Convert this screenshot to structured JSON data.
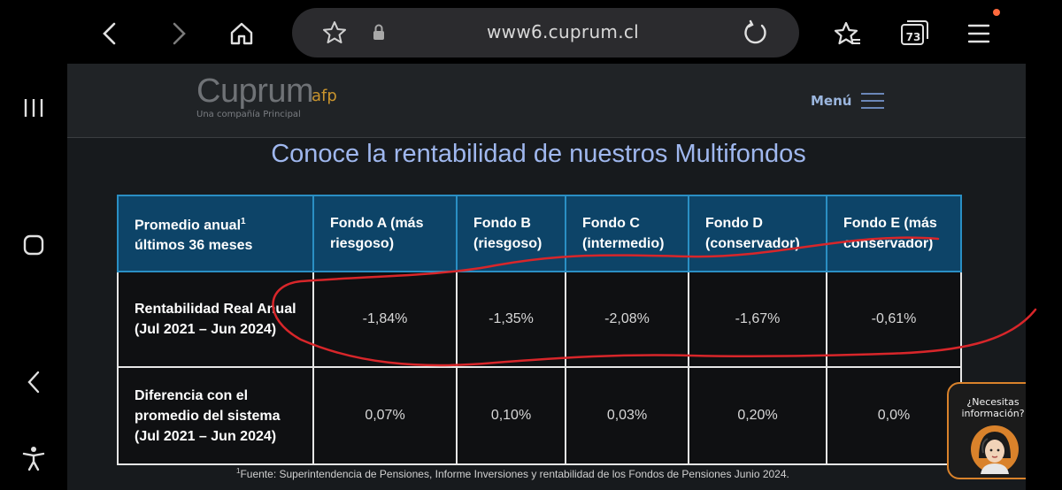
{
  "browser": {
    "url": "www6.cuprum.cl",
    "tab_count": "73",
    "icons": [
      "back-icon",
      "forward-icon",
      "home-icon",
      "star-icon",
      "lock-icon",
      "reload-icon",
      "favorites-icon",
      "tabs-icon",
      "menu-icon"
    ]
  },
  "site": {
    "logo_text": "Cuprum",
    "logo_suffix": "afp",
    "logo_tagline": "Una compañía  Principal",
    "menu_label": "Menú"
  },
  "page_title": "Conoce la rentabilidad de nuestros Multifondos",
  "table": {
    "header_first": "Promedio anual",
    "header_first_sup": "1",
    "header_first_line2": "últimos 36 meses",
    "columns": [
      "Fondo A (más riesgoso)",
      "Fondo B (riesgoso)",
      "Fondo C (intermedio)",
      "Fondo D (conservador)",
      "Fondo E (más conservador)"
    ],
    "rows": [
      {
        "label": "Rentabilidad Real Anual (Jul 2021 – Jun 2024)",
        "values": [
          "-1,84%",
          "-1,35%",
          "-2,08%",
          "-1,67%",
          "-0,61%"
        ]
      },
      {
        "label": "Diferencia con el promedio del sistema (Jul 2021 – Jun 2024)",
        "values": [
          "0,07%",
          "0,10%",
          "0,03%",
          "0,20%",
          "0,0%"
        ]
      }
    ]
  },
  "footnote_sup": "1",
  "footnote": "Fuente: Superintendencia de Pensiones, Informe Inversiones y rentabilidad de los Fondos de Pensiones Junio 2024.",
  "chat": {
    "text": "¿Necesitas información?"
  },
  "colors": {
    "header_bg": "#0d4468",
    "title": "#9fb7ee",
    "accent": "#d9822b",
    "annotation": "#d8262a"
  }
}
